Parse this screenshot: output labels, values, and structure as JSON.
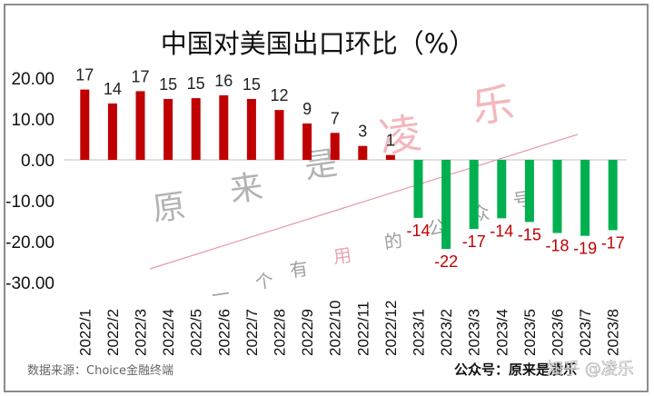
{
  "chart_data": {
    "type": "bar",
    "title": "中国对美国出口环比（%）",
    "categories": [
      "2022/1",
      "2022/2",
      "2022/3",
      "2022/4",
      "2022/5",
      "2022/6",
      "2022/7",
      "2022/8",
      "2022/9",
      "2022/10",
      "2022/11",
      "2022/12",
      "2023/1",
      "2023/2",
      "2023/3",
      "2023/4",
      "2023/5",
      "2023/6",
      "2023/7",
      "2023/8"
    ],
    "values": [
      17.2,
      13.8,
      16.8,
      14.9,
      15.1,
      15.8,
      14.9,
      12.2,
      8.9,
      6.6,
      3.4,
      1.2,
      -14.2,
      -21.8,
      -16.9,
      -14.3,
      -15.2,
      -17.9,
      -18.6,
      -17.2
    ],
    "data_labels": [
      "17",
      "14",
      "17",
      "15",
      "15",
      "16",
      "15",
      "12",
      "9",
      "7",
      "3",
      "1",
      "-14",
      "-22",
      "-17",
      "-14",
      "-15",
      "-18",
      "-19",
      "-17"
    ],
    "ylim": [
      -30,
      20
    ],
    "yticks": [
      "20.00",
      "10.00",
      "0.00",
      "-10.00",
      "-20.00",
      "-30.00"
    ],
    "ytick_values": [
      20,
      10,
      0,
      -10,
      -20,
      -30
    ],
    "xlabel": "",
    "ylabel": "",
    "grid": false,
    "colors": {
      "positive": "#c00000",
      "negative": "#00b050",
      "negative_label": "#c00000"
    }
  },
  "footer": {
    "source": "数据来源：Choice金融终端",
    "account": "公众号：原来是凌乐"
  },
  "watermark": {
    "big": [
      "凌",
      "乐"
    ],
    "mid": [
      "原",
      "来",
      "是"
    ],
    "small": [
      "一",
      "个",
      "有",
      "用",
      "的",
      "公",
      "众",
      "号"
    ],
    "zhihu": "知乎 @凌乐"
  }
}
